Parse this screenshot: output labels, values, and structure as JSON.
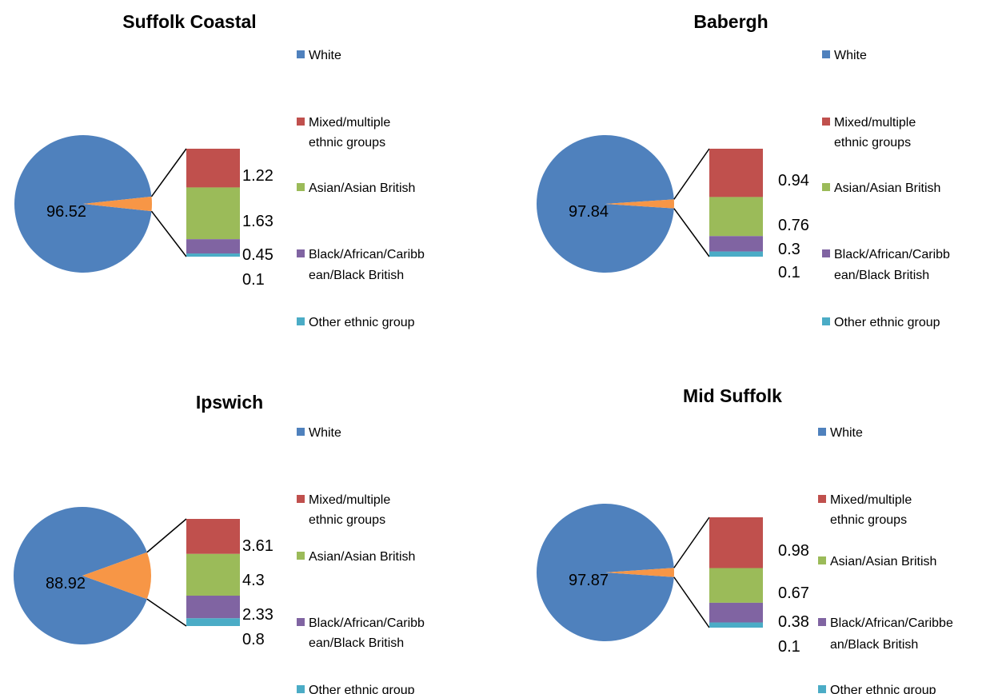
{
  "chart_data": [
    {
      "type": "pie",
      "title": "Suffolk Coastal",
      "categories": [
        "White",
        "Mixed/multiple ethnic groups",
        "Asian/Asian British",
        "Black/African/Caribbean/Black British",
        "Other ethnic group"
      ],
      "values": [
        96.52,
        1.22,
        1.63,
        0.45,
        0.1
      ],
      "value_labels": [
        "96.52",
        "1.22",
        "1.63",
        "0.45",
        "0.1"
      ],
      "legend": [
        "White",
        "Mixed/multiple",
        "ethnic groups",
        "Asian/Asian British",
        "Black/African/Caribb",
        "ean/Black British",
        "Other ethnic group"
      ]
    },
    {
      "type": "pie",
      "title": "Babergh",
      "categories": [
        "White",
        "Mixed/multiple ethnic groups",
        "Asian/Asian British",
        "Black/African/Caribbean/Black British",
        "Other ethnic group"
      ],
      "values": [
        97.84,
        0.94,
        0.76,
        0.3,
        0.1
      ],
      "value_labels": [
        "97.84",
        "0.94",
        "0.76",
        "0.3",
        "0.1"
      ],
      "legend": [
        "White",
        "Mixed/multiple",
        "ethnic groups",
        "Asian/Asian British",
        "Black/African/Caribb",
        "ean/Black British",
        "Other ethnic group"
      ]
    },
    {
      "type": "pie",
      "title": "Ipswich",
      "categories": [
        "White",
        "Mixed/multiple ethnic groups",
        "Asian/Asian British",
        "Black/African/Caribbean/Black British",
        "Other ethnic group"
      ],
      "values": [
        88.92,
        3.61,
        4.3,
        2.33,
        0.8
      ],
      "value_labels": [
        "88.92",
        "3.61",
        "4.3",
        "2.33",
        "0.8"
      ],
      "legend": [
        "White",
        "Mixed/multiple",
        "ethnic groups",
        "Asian/Asian British",
        "Black/African/Caribb",
        "ean/Black British",
        "Other ethnic group"
      ]
    },
    {
      "type": "pie",
      "title": "Mid Suffolk",
      "categories": [
        "White",
        "Mixed/multiple ethnic groups",
        "Asian/Asian British",
        "Black/African/Caribbean/Black British",
        "Other ethnic group"
      ],
      "values": [
        97.87,
        0.98,
        0.67,
        0.38,
        0.1
      ],
      "value_labels": [
        "97.87",
        "0.98",
        "0.67",
        "0.38",
        "0.1"
      ],
      "legend": [
        "White",
        "Mixed/multiple",
        "ethnic groups",
        "Asian/Asian British",
        "Black/African/Caribbe",
        "an/Black British",
        "Other ethnic group"
      ]
    }
  ],
  "colors": {
    "white": "#4F81BD",
    "other_slice": "#F79646",
    "mixed": "#C0504D",
    "asian": "#9BBB59",
    "black": "#8064A2",
    "other": "#4BACC6"
  }
}
